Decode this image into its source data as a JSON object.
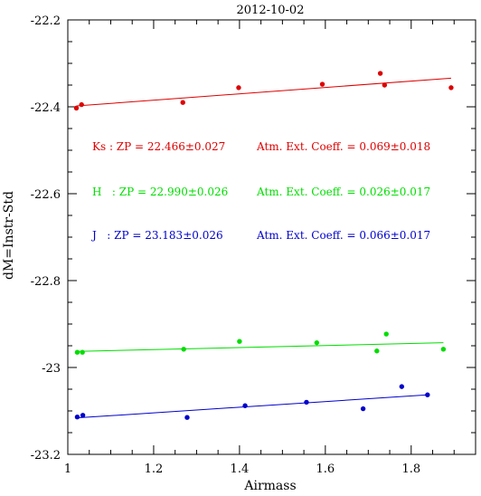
{
  "chart_data": {
    "type": "scatter",
    "title": "2012-10-02",
    "xlabel": "Airmass",
    "ylabel": "dM=Instr-Std",
    "xlim": [
      1.0,
      1.95
    ],
    "ylim": [
      -23.2,
      -22.2
    ],
    "y_inverted": true,
    "xticks": [
      1,
      1.2,
      1.4,
      1.6,
      1.8
    ],
    "yticks": [
      -22.2,
      -22.4,
      -22.6,
      -22.8,
      -23,
      -23.2
    ],
    "xtick_labels": [
      "1",
      "1.2",
      "1.4",
      "1.6",
      "1.8"
    ],
    "ytick_labels": [
      "-22.2",
      "-22.4",
      "-22.6",
      "-22.8",
      "-23",
      "-23.2"
    ],
    "grid": false,
    "series": [
      {
        "name": "Ks",
        "color": "#dd0000",
        "points": [
          {
            "x": 1.02,
            "y": -22.403
          },
          {
            "x": 1.032,
            "y": -22.395
          },
          {
            "x": 1.268,
            "y": -22.39
          },
          {
            "x": 1.398,
            "y": -22.356
          },
          {
            "x": 1.593,
            "y": -22.348
          },
          {
            "x": 1.728,
            "y": -22.323
          },
          {
            "x": 1.738,
            "y": -22.35
          },
          {
            "x": 1.893,
            "y": -22.356
          }
        ],
        "fit": {
          "x": [
            1.02,
            1.893
          ],
          "y": [
            -22.398,
            -22.334
          ]
        }
      },
      {
        "name": "H",
        "color": "#00dd00",
        "points": [
          {
            "x": 1.022,
            "y": -22.965
          },
          {
            "x": 1.034,
            "y": -22.965
          },
          {
            "x": 1.27,
            "y": -22.958
          },
          {
            "x": 1.4,
            "y": -22.94
          },
          {
            "x": 1.58,
            "y": -22.943
          },
          {
            "x": 1.72,
            "y": -22.962
          },
          {
            "x": 1.742,
            "y": -22.923
          },
          {
            "x": 1.875,
            "y": -22.958
          }
        ],
        "fit": {
          "x": [
            1.022,
            1.875
          ],
          "y": [
            -22.963,
            -22.943
          ]
        }
      },
      {
        "name": "J",
        "color": "#0000cc",
        "points": [
          {
            "x": 1.022,
            "y": -23.114
          },
          {
            "x": 1.035,
            "y": -23.11
          },
          {
            "x": 1.278,
            "y": -23.115
          },
          {
            "x": 1.413,
            "y": -23.088
          },
          {
            "x": 1.556,
            "y": -23.08
          },
          {
            "x": 1.688,
            "y": -23.095
          },
          {
            "x": 1.778,
            "y": -23.044
          },
          {
            "x": 1.838,
            "y": -23.063
          }
        ],
        "fit": {
          "x": [
            1.022,
            1.838
          ],
          "y": [
            -23.116,
            -23.063
          ]
        }
      }
    ],
    "annotations": [
      {
        "band": "Ks",
        "zp_text": "Ks : ZP = 22.466±0.027",
        "ext_text": "Atm. Ext. Coeff. = 0.069±0.018",
        "color": "#dd0000"
      },
      {
        "band": "H",
        "zp_text": "H   : ZP = 22.990±0.026",
        "ext_text": "Atm. Ext. Coeff. = 0.026±0.017",
        "color": "#00dd00"
      },
      {
        "band": "J",
        "zp_text": "J   : ZP = 23.183±0.026",
        "ext_text": "Atm. Ext. Coeff. = 0.066±0.017",
        "color": "#0000cc"
      }
    ]
  }
}
